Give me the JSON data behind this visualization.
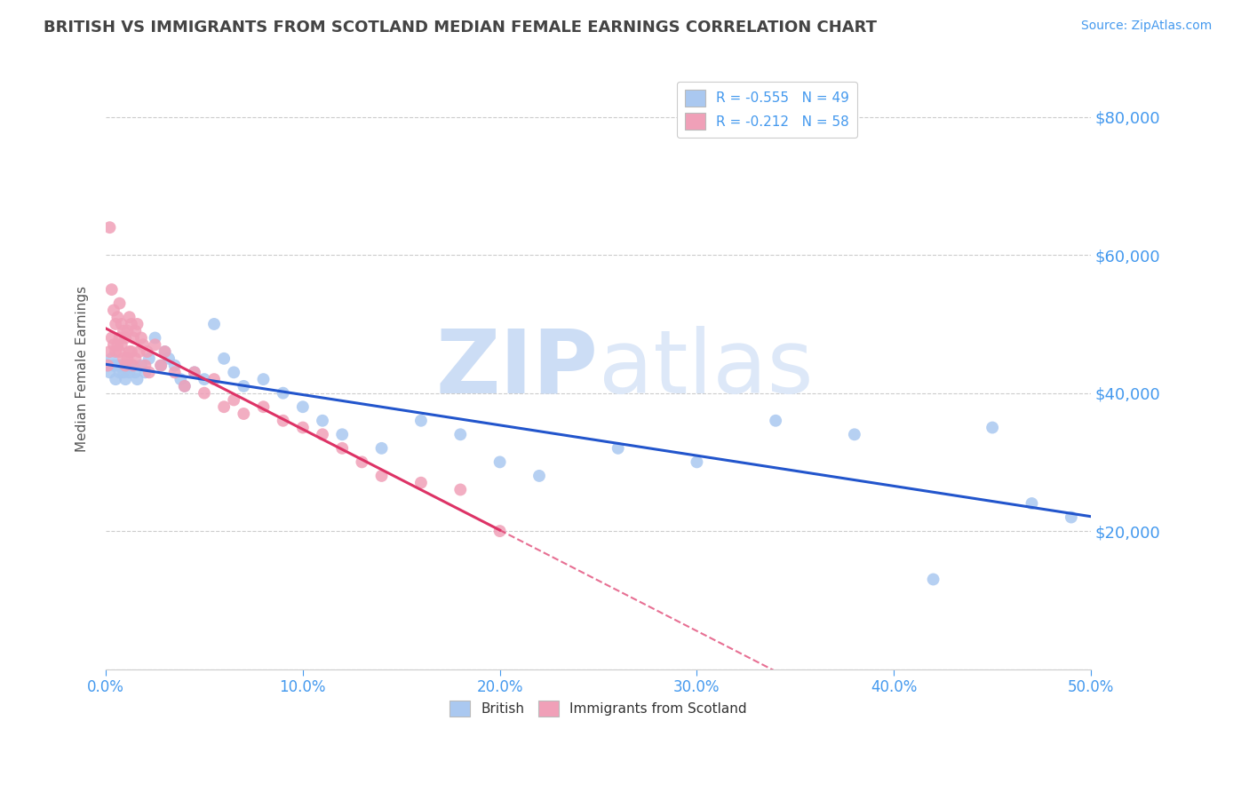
{
  "title": "BRITISH VS IMMIGRANTS FROM SCOTLAND MEDIAN FEMALE EARNINGS CORRELATION CHART",
  "source": "Source: ZipAtlas.com",
  "ylabel": "Median Female Earnings",
  "legend_bottom": [
    "British",
    "Immigrants from Scotland"
  ],
  "series": [
    {
      "label": "British",
      "R": -0.555,
      "N": 49,
      "color": "#aac8f0",
      "trend_color": "#2255cc",
      "trend_style": "solid",
      "x": [
        0.001,
        0.002,
        0.003,
        0.004,
        0.005,
        0.006,
        0.007,
        0.008,
        0.009,
        0.01,
        0.011,
        0.012,
        0.013,
        0.015,
        0.016,
        0.018,
        0.02,
        0.022,
        0.025,
        0.028,
        0.03,
        0.032,
        0.035,
        0.038,
        0.04,
        0.045,
        0.05,
        0.055,
        0.06,
        0.065,
        0.07,
        0.08,
        0.09,
        0.1,
        0.11,
        0.12,
        0.14,
        0.16,
        0.18,
        0.2,
        0.22,
        0.26,
        0.3,
        0.34,
        0.38,
        0.42,
        0.45,
        0.47,
        0.49
      ],
      "y": [
        44000,
        43000,
        45000,
        44000,
        42000,
        44000,
        43000,
        44000,
        43000,
        42000,
        44000,
        43000,
        44000,
        43000,
        42000,
        44000,
        43000,
        45000,
        48000,
        44000,
        46000,
        45000,
        44000,
        42000,
        41000,
        43000,
        42000,
        50000,
        45000,
        43000,
        41000,
        42000,
        40000,
        38000,
        36000,
        34000,
        32000,
        36000,
        34000,
        30000,
        28000,
        32000,
        30000,
        36000,
        34000,
        13000,
        35000,
        24000,
        22000
      ]
    },
    {
      "label": "Immigrants from Scotland",
      "R": -0.212,
      "N": 58,
      "color": "#f0a0b8",
      "trend_color": "#dd3366",
      "trend_style": "solid_then_dashed",
      "x": [
        0.001,
        0.002,
        0.002,
        0.003,
        0.003,
        0.004,
        0.004,
        0.005,
        0.005,
        0.006,
        0.006,
        0.007,
        0.007,
        0.007,
        0.008,
        0.008,
        0.009,
        0.009,
        0.01,
        0.01,
        0.011,
        0.011,
        0.012,
        0.012,
        0.013,
        0.013,
        0.014,
        0.014,
        0.015,
        0.015,
        0.016,
        0.017,
        0.018,
        0.019,
        0.02,
        0.021,
        0.022,
        0.025,
        0.028,
        0.03,
        0.035,
        0.04,
        0.045,
        0.05,
        0.055,
        0.06,
        0.065,
        0.07,
        0.08,
        0.09,
        0.1,
        0.11,
        0.12,
        0.13,
        0.14,
        0.16,
        0.18,
        0.2
      ],
      "y": [
        44000,
        64000,
        46000,
        55000,
        48000,
        52000,
        47000,
        50000,
        46000,
        51000,
        47000,
        53000,
        48000,
        46000,
        50000,
        47000,
        49000,
        45000,
        48000,
        44000,
        49000,
        45000,
        51000,
        46000,
        50000,
        46000,
        48000,
        44000,
        49000,
        45000,
        50000,
        46000,
        48000,
        47000,
        44000,
        46000,
        43000,
        47000,
        44000,
        46000,
        43000,
        41000,
        43000,
        40000,
        42000,
        38000,
        39000,
        37000,
        38000,
        36000,
        35000,
        34000,
        32000,
        30000,
        28000,
        27000,
        26000,
        20000
      ]
    }
  ],
  "xlim": [
    0.0,
    0.5
  ],
  "ylim": [
    0,
    87000
  ],
  "yticks": [
    0,
    20000,
    40000,
    60000,
    80000
  ],
  "ytick_labels": [
    "",
    "$20,000",
    "$40,000",
    "$60,000",
    "$80,000"
  ],
  "xticks": [
    0.0,
    0.1,
    0.2,
    0.3,
    0.4,
    0.5
  ],
  "xtick_labels": [
    "0.0%",
    "10.0%",
    "20.0%",
    "30.0%",
    "40.0%",
    "50.0%"
  ],
  "grid_color": "#cccccc",
  "watermark_zip": "ZIP",
  "watermark_atlas": "atlas",
  "watermark_color": "#ccddf5",
  "axis_color": "#4499ee",
  "background_color": "#ffffff",
  "title_color": "#444444",
  "title_fontsize": 13,
  "legend_fontsize": 11,
  "scotland_trend_solid_end": 0.2
}
